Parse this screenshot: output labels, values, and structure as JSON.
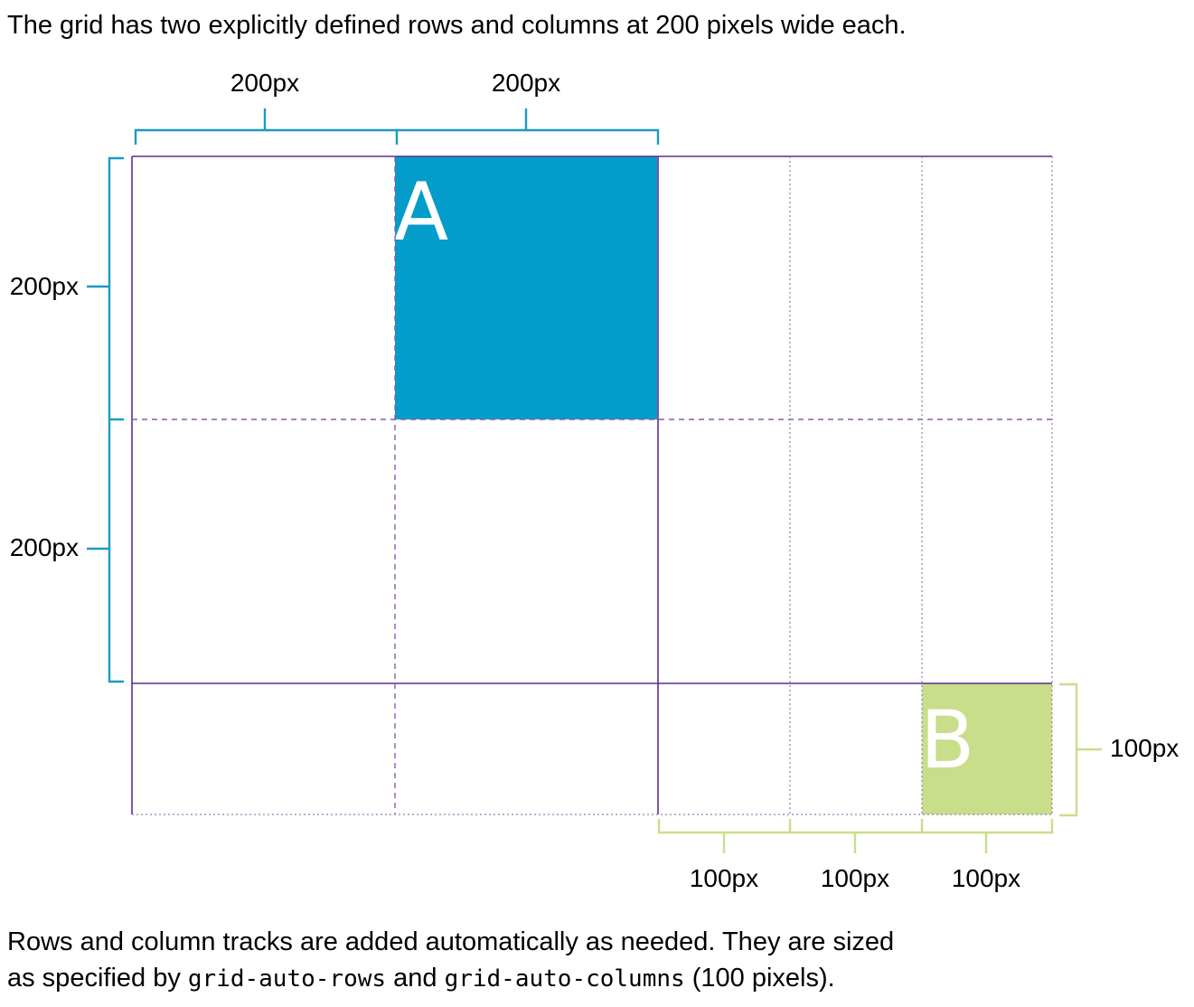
{
  "caption_top": "The grid has two explicitly defined rows and columns at 200 pixels wide each.",
  "caption_bottom": {
    "line1": "Rows and column tracks are added automatically as needed. They are sized",
    "line2_before": "as specified by",
    "code1": "grid-auto-rows",
    "and": "and",
    "code2": "grid-auto-columns",
    "line2_after": "(100 pixels)."
  },
  "labels": {
    "col1": "200px",
    "col2": "200px",
    "row1": "200px",
    "row2": "200px",
    "auto_row": "100px",
    "auto_col1": "100px",
    "auto_col2": "100px",
    "auto_col3": "100px"
  },
  "items": {
    "a": "A",
    "b": "B"
  },
  "colors": {
    "item_a": "#049cc8",
    "item_b": "#c8de8a",
    "explicit_bracket": "#1a9ac4",
    "implicit_bracket": "#c8de8a",
    "grid_line": "#5b2d8e",
    "grid_line_dashed": "#8e5ab0"
  }
}
